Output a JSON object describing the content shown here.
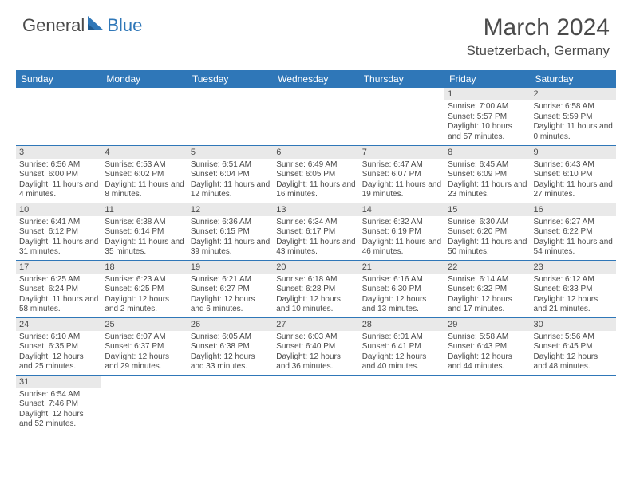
{
  "brand": {
    "text_general": "General",
    "text_blue": "Blue",
    "sail_color": "#2f77b8",
    "general_color": "#4a4a4a"
  },
  "header": {
    "month_title": "March 2024",
    "location": "Stuetzerbach, Germany"
  },
  "style": {
    "header_bg": "#2f77b8",
    "header_text": "#ffffff",
    "daynum_bg": "#e9e9e9",
    "text_color": "#4a4a4a",
    "row_border": "#2f77b8"
  },
  "weekdays": [
    "Sunday",
    "Monday",
    "Tuesday",
    "Wednesday",
    "Thursday",
    "Friday",
    "Saturday"
  ],
  "days": {
    "1": {
      "sunrise": "7:00 AM",
      "sunset": "5:57 PM",
      "daylight": "10 hours and 57 minutes."
    },
    "2": {
      "sunrise": "6:58 AM",
      "sunset": "5:59 PM",
      "daylight": "11 hours and 0 minutes."
    },
    "3": {
      "sunrise": "6:56 AM",
      "sunset": "6:00 PM",
      "daylight": "11 hours and 4 minutes."
    },
    "4": {
      "sunrise": "6:53 AM",
      "sunset": "6:02 PM",
      "daylight": "11 hours and 8 minutes."
    },
    "5": {
      "sunrise": "6:51 AM",
      "sunset": "6:04 PM",
      "daylight": "11 hours and 12 minutes."
    },
    "6": {
      "sunrise": "6:49 AM",
      "sunset": "6:05 PM",
      "daylight": "11 hours and 16 minutes."
    },
    "7": {
      "sunrise": "6:47 AM",
      "sunset": "6:07 PM",
      "daylight": "11 hours and 19 minutes."
    },
    "8": {
      "sunrise": "6:45 AM",
      "sunset": "6:09 PM",
      "daylight": "11 hours and 23 minutes."
    },
    "9": {
      "sunrise": "6:43 AM",
      "sunset": "6:10 PM",
      "daylight": "11 hours and 27 minutes."
    },
    "10": {
      "sunrise": "6:41 AM",
      "sunset": "6:12 PM",
      "daylight": "11 hours and 31 minutes."
    },
    "11": {
      "sunrise": "6:38 AM",
      "sunset": "6:14 PM",
      "daylight": "11 hours and 35 minutes."
    },
    "12": {
      "sunrise": "6:36 AM",
      "sunset": "6:15 PM",
      "daylight": "11 hours and 39 minutes."
    },
    "13": {
      "sunrise": "6:34 AM",
      "sunset": "6:17 PM",
      "daylight": "11 hours and 43 minutes."
    },
    "14": {
      "sunrise": "6:32 AM",
      "sunset": "6:19 PM",
      "daylight": "11 hours and 46 minutes."
    },
    "15": {
      "sunrise": "6:30 AM",
      "sunset": "6:20 PM",
      "daylight": "11 hours and 50 minutes."
    },
    "16": {
      "sunrise": "6:27 AM",
      "sunset": "6:22 PM",
      "daylight": "11 hours and 54 minutes."
    },
    "17": {
      "sunrise": "6:25 AM",
      "sunset": "6:24 PM",
      "daylight": "11 hours and 58 minutes."
    },
    "18": {
      "sunrise": "6:23 AM",
      "sunset": "6:25 PM",
      "daylight": "12 hours and 2 minutes."
    },
    "19": {
      "sunrise": "6:21 AM",
      "sunset": "6:27 PM",
      "daylight": "12 hours and 6 minutes."
    },
    "20": {
      "sunrise": "6:18 AM",
      "sunset": "6:28 PM",
      "daylight": "12 hours and 10 minutes."
    },
    "21": {
      "sunrise": "6:16 AM",
      "sunset": "6:30 PM",
      "daylight": "12 hours and 13 minutes."
    },
    "22": {
      "sunrise": "6:14 AM",
      "sunset": "6:32 PM",
      "daylight": "12 hours and 17 minutes."
    },
    "23": {
      "sunrise": "6:12 AM",
      "sunset": "6:33 PM",
      "daylight": "12 hours and 21 minutes."
    },
    "24": {
      "sunrise": "6:10 AM",
      "sunset": "6:35 PM",
      "daylight": "12 hours and 25 minutes."
    },
    "25": {
      "sunrise": "6:07 AM",
      "sunset": "6:37 PM",
      "daylight": "12 hours and 29 minutes."
    },
    "26": {
      "sunrise": "6:05 AM",
      "sunset": "6:38 PM",
      "daylight": "12 hours and 33 minutes."
    },
    "27": {
      "sunrise": "6:03 AM",
      "sunset": "6:40 PM",
      "daylight": "12 hours and 36 minutes."
    },
    "28": {
      "sunrise": "6:01 AM",
      "sunset": "6:41 PM",
      "daylight": "12 hours and 40 minutes."
    },
    "29": {
      "sunrise": "5:58 AM",
      "sunset": "6:43 PM",
      "daylight": "12 hours and 44 minutes."
    },
    "30": {
      "sunrise": "5:56 AM",
      "sunset": "6:45 PM",
      "daylight": "12 hours and 48 minutes."
    },
    "31": {
      "sunrise": "6:54 AM",
      "sunset": "7:46 PM",
      "daylight": "12 hours and 52 minutes."
    }
  },
  "layout": {
    "first_weekday_index": 5,
    "num_days": 31
  }
}
